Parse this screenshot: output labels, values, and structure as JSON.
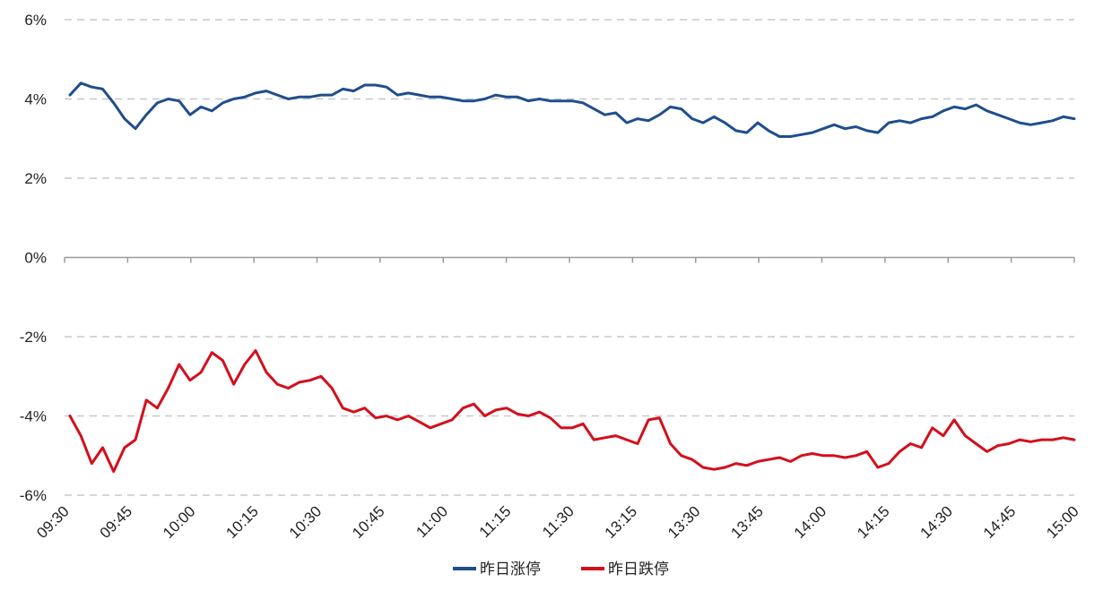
{
  "chart_data": {
    "type": "line",
    "title": "",
    "xlabel": "",
    "ylabel": "",
    "ylim": [
      -6,
      6
    ],
    "yticks": [
      6,
      4,
      2,
      0,
      -2,
      -4,
      -6
    ],
    "ytick_labels": [
      "6%",
      "4%",
      "2%",
      "0%",
      "-2%",
      "-4%",
      "-6%"
    ],
    "y_unit": "%",
    "x_tick_labels": [
      "09:30",
      "09:45",
      "10:00",
      "10:15",
      "10:30",
      "10:45",
      "11:00",
      "11:15",
      "11:30",
      "13:15",
      "13:30",
      "13:45",
      "14:00",
      "14:15",
      "14:30",
      "14:45",
      "15:00"
    ],
    "grid": {
      "horizontal": true,
      "style": "dashed"
    },
    "legend_position": "bottom-center",
    "series": [
      {
        "name": "昨日涨停",
        "color": "#1f4e8c",
        "values": [
          4.1,
          4.4,
          4.3,
          4.25,
          3.9,
          3.5,
          3.25,
          3.6,
          3.9,
          4.0,
          3.95,
          3.6,
          3.8,
          3.7,
          3.9,
          4.0,
          4.05,
          4.15,
          4.2,
          4.1,
          4.0,
          4.05,
          4.05,
          4.1,
          4.1,
          4.25,
          4.2,
          4.35,
          4.35,
          4.3,
          4.1,
          4.15,
          4.1,
          4.05,
          4.05,
          4.0,
          3.95,
          3.95,
          4.0,
          4.1,
          4.05,
          4.05,
          3.95,
          4.0,
          3.95,
          3.95,
          3.95,
          3.9,
          3.75,
          3.6,
          3.65,
          3.4,
          3.5,
          3.45,
          3.6,
          3.8,
          3.75,
          3.5,
          3.4,
          3.55,
          3.4,
          3.2,
          3.15,
          3.4,
          3.2,
          3.05,
          3.05,
          3.1,
          3.15,
          3.25,
          3.35,
          3.25,
          3.3,
          3.2,
          3.15,
          3.4,
          3.45,
          3.4,
          3.5,
          3.55,
          3.7,
          3.8,
          3.75,
          3.85,
          3.7,
          3.6,
          3.5,
          3.4,
          3.35,
          3.4,
          3.45,
          3.55,
          3.5
        ]
      },
      {
        "name": "昨日跌停",
        "color": "#d40f1c",
        "values": [
          -4.0,
          -4.5,
          -5.2,
          -4.8,
          -5.4,
          -4.8,
          -4.6,
          -3.6,
          -3.8,
          -3.3,
          -2.7,
          -3.1,
          -2.9,
          -2.4,
          -2.6,
          -3.2,
          -2.7,
          -2.35,
          -2.9,
          -3.2,
          -3.3,
          -3.15,
          -3.1,
          -3.0,
          -3.3,
          -3.8,
          -3.9,
          -3.8,
          -4.05,
          -4.0,
          -4.1,
          -4.0,
          -4.15,
          -4.3,
          -4.2,
          -4.1,
          -3.8,
          -3.7,
          -4.0,
          -3.85,
          -3.8,
          -3.95,
          -4.0,
          -3.9,
          -4.05,
          -4.3,
          -4.3,
          -4.2,
          -4.6,
          -4.55,
          -4.5,
          -4.6,
          -4.7,
          -4.1,
          -4.05,
          -4.7,
          -5.0,
          -5.1,
          -5.3,
          -5.35,
          -5.3,
          -5.2,
          -5.25,
          -5.15,
          -5.1,
          -5.05,
          -5.15,
          -5.0,
          -4.95,
          -5.0,
          -5.0,
          -5.05,
          -5.0,
          -4.9,
          -5.3,
          -5.2,
          -4.9,
          -4.7,
          -4.8,
          -4.3,
          -4.5,
          -4.1,
          -4.5,
          -4.7,
          -4.9,
          -4.75,
          -4.7,
          -4.6,
          -4.65,
          -4.6,
          -4.6,
          -4.55,
          -4.6
        ]
      }
    ]
  }
}
